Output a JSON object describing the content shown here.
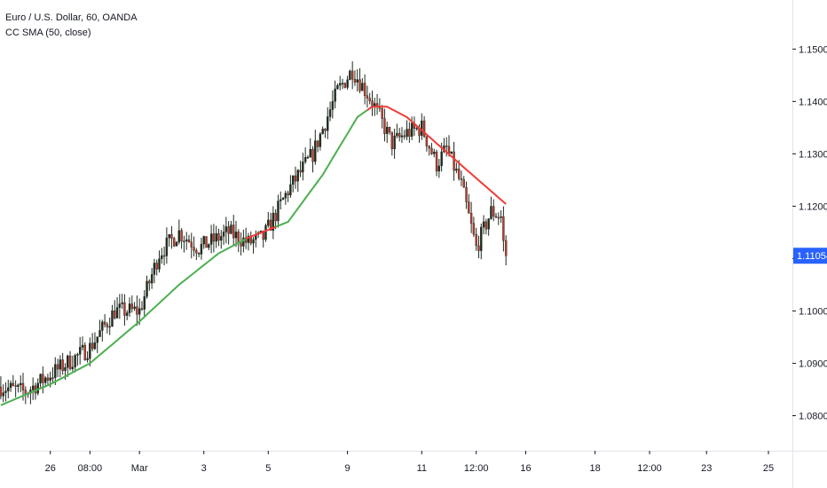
{
  "legend": {
    "symbol": "Euro / U.S. Dollar, 60, OANDA",
    "indicator": "CC SMA (50, close)"
  },
  "colors": {
    "background": "#ffffff",
    "axis_text": "#131722",
    "axis_line": "#e0e3eb",
    "candle_up": "#1f2a1f",
    "candle_down": "#c0392b",
    "sma_up": "#4caf50",
    "sma_down": "#ef3b36",
    "price_tag": "#2962ff",
    "price_tag_text": "#ffffff"
  },
  "chart_data": {
    "type": "line",
    "title": "",
    "xlabel": "",
    "ylabel": "",
    "ylim": [
      1.075,
      1.157
    ],
    "y_ticks": [
      "1.08000",
      "1.09000",
      "1.10000",
      "1.11000",
      "1.12000",
      "1.13000",
      "1.14000",
      "1.15000"
    ],
    "y_tick_values": [
      1.08,
      1.09,
      1.1,
      1.11,
      1.12,
      1.13,
      1.14,
      1.15
    ],
    "x_ticks": [
      "26",
      "08:00",
      "Mar",
      "3",
      "5",
      "9",
      "11",
      "12:00",
      "16",
      "18",
      "12:00",
      "23",
      "25"
    ],
    "x_tick_index": [
      20,
      36,
      56,
      82,
      108,
      140,
      170,
      192,
      212,
      240,
      262,
      285,
      310
    ],
    "last_price": "1.11054",
    "last_price_value": 1.11054,
    "candle_count": 205,
    "axis_bars": 320,
    "price_anchors": [
      [
        0,
        1.0855
      ],
      [
        10,
        1.0845
      ],
      [
        22,
        1.0885
      ],
      [
        36,
        1.093
      ],
      [
        46,
        1.1
      ],
      [
        56,
        1.1
      ],
      [
        64,
        1.111
      ],
      [
        72,
        1.115
      ],
      [
        80,
        1.112
      ],
      [
        92,
        1.115
      ],
      [
        100,
        1.113
      ],
      [
        106,
        1.114
      ],
      [
        116,
        1.123
      ],
      [
        126,
        1.13
      ],
      [
        136,
        1.142
      ],
      [
        142,
        1.146
      ],
      [
        150,
        1.14
      ],
      [
        158,
        1.132
      ],
      [
        164,
        1.134
      ],
      [
        170,
        1.135
      ],
      [
        176,
        1.128
      ],
      [
        180,
        1.131
      ],
      [
        186,
        1.124
      ],
      [
        192,
        1.112
      ],
      [
        198,
        1.119
      ],
      [
        202,
        1.118
      ],
      [
        204,
        1.108
      ],
      [
        205,
        1.1105
      ]
    ],
    "sma_anchors": [
      [
        0,
        1.082
      ],
      [
        20,
        1.086
      ],
      [
        36,
        1.09
      ],
      [
        56,
        1.098
      ],
      [
        72,
        1.105
      ],
      [
        88,
        1.111
      ],
      [
        100,
        1.114
      ],
      [
        116,
        1.117
      ],
      [
        130,
        1.126
      ],
      [
        144,
        1.137
      ],
      [
        150,
        1.139
      ],
      [
        156,
        1.139
      ],
      [
        164,
        1.137
      ],
      [
        176,
        1.132
      ],
      [
        188,
        1.127
      ],
      [
        205,
        1.12
      ]
    ],
    "sma_red_ranges": [
      [
        99,
        111
      ],
      [
        148,
        205
      ]
    ],
    "series": [
      {
        "name": "CC SMA (50, close)",
        "role": "sma"
      }
    ]
  }
}
